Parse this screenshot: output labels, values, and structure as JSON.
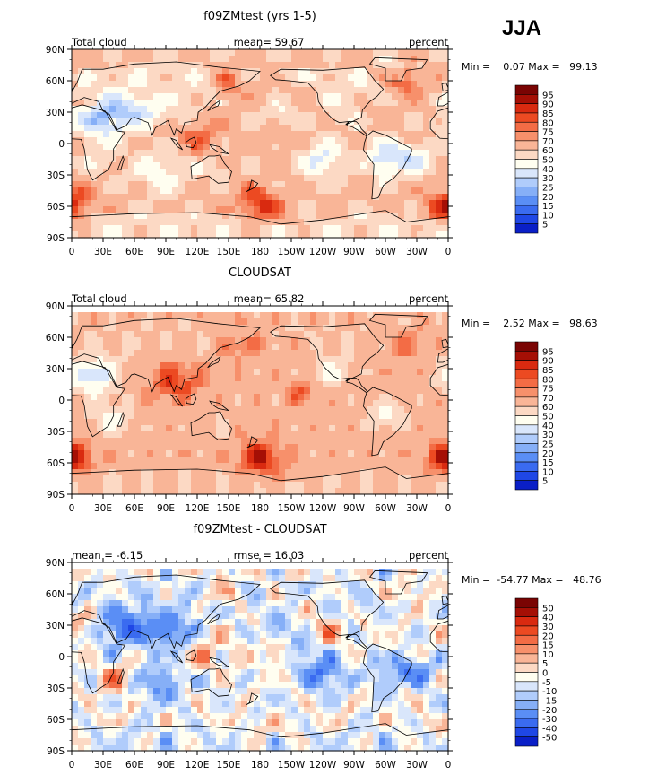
{
  "season": "JJA",
  "colors": {
    "seq": [
      "#000080",
      "#0a1fc7",
      "#1f47e6",
      "#3a6bf0",
      "#5a8ef5",
      "#86aff7",
      "#b0ccfb",
      "#d9e6fb",
      "#fffef0",
      "#fcd9c4",
      "#f9b597",
      "#f7906b",
      "#f36c45",
      "#ec4a22",
      "#d92a10",
      "#a50f05",
      "#7a0403"
    ],
    "div": [
      "#000080",
      "#0a1fc7",
      "#1f47e6",
      "#3a6bf0",
      "#5a8ef5",
      "#86aff7",
      "#b0ccfb",
      "#d9e6fb",
      "#fffef0",
      "#fcd9c4",
      "#f9b597",
      "#f7906b",
      "#f36c45",
      "#ec4a22",
      "#d92a10",
      "#a50f05",
      "#7a0403"
    ]
  },
  "chart_data": [
    {
      "type": "heatmap",
      "title": "f09ZMtest (yrs 1-5)",
      "left_label": "Total cloud",
      "center_label": "mean=  59.67",
      "right_label": "percent",
      "minmax": "Min =    0.07 Max =   99.13",
      "x_ticks": [
        "0",
        "30E",
        "60E",
        "90E",
        "120E",
        "150E",
        "180",
        "150W",
        "120W",
        "90W",
        "60W",
        "30W",
        "0"
      ],
      "y_ticks": [
        "90N",
        "60N",
        "30N",
        "0",
        "30S",
        "60S",
        "90S"
      ],
      "colorbar_levels": [
        "95",
        "90",
        "85",
        "80",
        "75",
        "70",
        "60",
        "50",
        "40",
        "30",
        "25",
        "20",
        "15",
        "10",
        "5"
      ],
      "mean": 59.67,
      "min": 0.07,
      "max": 99.13,
      "field_key": "model"
    },
    {
      "type": "heatmap",
      "title": "CLOUDSAT",
      "left_label": "Total cloud",
      "center_label": "mean=  65.82",
      "right_label": "percent",
      "minmax": "Min =    2.52 Max =   98.63",
      "x_ticks": [
        "0",
        "30E",
        "60E",
        "90E",
        "120E",
        "150E",
        "180",
        "150W",
        "120W",
        "90W",
        "60W",
        "30W",
        "0"
      ],
      "y_ticks": [
        "90N",
        "60N",
        "30N",
        "0",
        "30S",
        "60S",
        "90S"
      ],
      "colorbar_levels": [
        "95",
        "90",
        "85",
        "80",
        "75",
        "70",
        "60",
        "50",
        "40",
        "30",
        "25",
        "20",
        "15",
        "10",
        "5"
      ],
      "mean": 65.82,
      "min": 2.52,
      "max": 98.63,
      "field_key": "obs"
    },
    {
      "type": "heatmap",
      "title": "f09ZMtest - CLOUDSAT",
      "left_label": "mean =  -6.15",
      "center_label": "rmse =  16.03",
      "right_label": "percent",
      "minmax": "Min =  -54.77 Max =   48.76",
      "x_ticks": [
        "0",
        "30E",
        "60E",
        "90E",
        "120E",
        "150E",
        "180",
        "150W",
        "120W",
        "90W",
        "60W",
        "30W",
        "0"
      ],
      "y_ticks": [
        "90N",
        "60N",
        "30N",
        "0",
        "30S",
        "60S",
        "90S"
      ],
      "colorbar_levels": [
        "50",
        "40",
        "30",
        "20",
        "15",
        "10",
        "5",
        "0",
        "-5",
        "-10",
        "-15",
        "-20",
        "-30",
        "-40",
        "-50"
      ],
      "mean": -6.15,
      "rmse": 16.03,
      "min": -54.77,
      "max": 48.76,
      "field_key": "diff"
    }
  ]
}
